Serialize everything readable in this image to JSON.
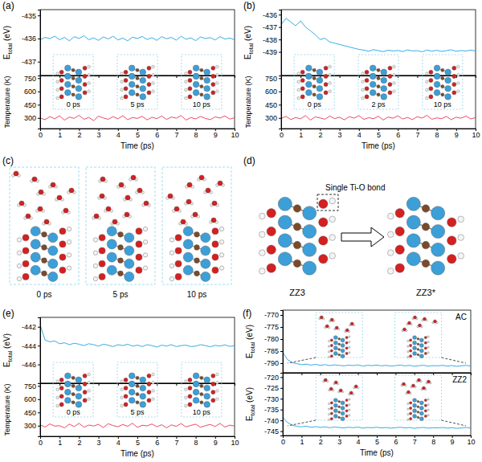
{
  "chart_data": [
    {
      "type": "line",
      "title": "(a)",
      "ylabel": "Etotal (eV)",
      "x": [
        0,
        0.25,
        0.5,
        0.75,
        1,
        1.25,
        1.5,
        1.75,
        2,
        2.25,
        2.5,
        2.75,
        3,
        3.25,
        3.5,
        3.75,
        4,
        4.25,
        4.5,
        4.75,
        5,
        5.25,
        5.5,
        5.75,
        6,
        6.25,
        6.5,
        6.75,
        7,
        7.25,
        7.5,
        7.75,
        8,
        8.25,
        8.5,
        8.75,
        9,
        9.25,
        9.5,
        9.75,
        10
      ],
      "values": [
        -436.05,
        -435.95,
        -436.0,
        -435.9,
        -436.05,
        -435.95,
        -436.1,
        -435.92,
        -436.0,
        -435.88,
        -436.05,
        -435.97,
        -436.08,
        -435.93,
        -436.02,
        -435.9,
        -436.06,
        -435.98,
        -436.1,
        -435.94,
        -436.0,
        -435.91,
        -436.04,
        -435.96,
        -436.08,
        -435.92,
        -436.01,
        -435.95,
        -436.07,
        -435.9,
        -436.03,
        -435.97,
        -436.09,
        -435.93,
        -436.0,
        -435.96,
        -436.06,
        -435.92,
        -436.02,
        -435.98,
        -436.05
      ],
      "color": "#1fa3e0",
      "xlim": [
        0,
        10
      ],
      "xticks": [
        0,
        1,
        2,
        3,
        4,
        5,
        6,
        7,
        8,
        9,
        10
      ],
      "ylim": [
        -437.6,
        -434.75
      ],
      "yticks": [
        -437,
        -436,
        -435
      ],
      "tick_labels": "y",
      "annotations": [
        "0 ps",
        "5 ps",
        "10 ps"
      ]
    },
    {
      "type": "line",
      "xlabel": "Time (ps)",
      "ylabel": "Temperature (K)",
      "x": [
        0,
        0.25,
        0.5,
        0.75,
        1,
        1.25,
        1.5,
        1.75,
        2,
        2.25,
        2.5,
        2.75,
        3,
        3.25,
        3.5,
        3.75,
        4,
        4.25,
        4.5,
        4.75,
        5,
        5.25,
        5.5,
        5.75,
        6,
        6.25,
        6.5,
        6.75,
        7,
        7.25,
        7.5,
        7.75,
        8,
        8.25,
        8.5,
        8.75,
        9,
        9.25,
        9.5,
        9.75,
        10
      ],
      "values": [
        300,
        280,
        315,
        290,
        325,
        275,
        310,
        295,
        330,
        285,
        305,
        270,
        320,
        300,
        285,
        315,
        290,
        325,
        280,
        305,
        295,
        318,
        278,
        308,
        292,
        322,
        283,
        310,
        297,
        328,
        276,
        304,
        289,
        317,
        295,
        281,
        312,
        299,
        323,
        287,
        302
      ],
      "color": "#e8374f",
      "xlim": [
        0,
        10
      ],
      "xticks": [
        0,
        1,
        2,
        3,
        4,
        5,
        6,
        7,
        8,
        9,
        10
      ],
      "ylim": [
        180,
        780
      ],
      "yticks": [
        300,
        450,
        600,
        750
      ]
    },
    {
      "type": "line",
      "title": "(b)",
      "ylabel": "Etotal (eV)",
      "x": [
        0,
        0.25,
        0.5,
        0.75,
        1,
        1.25,
        1.5,
        1.75,
        2,
        2.25,
        2.5,
        2.75,
        3,
        3.25,
        3.5,
        3.75,
        4,
        4.25,
        4.5,
        4.75,
        5,
        5.25,
        5.5,
        5.75,
        6,
        6.25,
        6.5,
        6.75,
        7,
        7.25,
        7.5,
        7.75,
        8,
        8.25,
        8.5,
        8.75,
        9,
        9.25,
        9.5,
        9.75,
        10
      ],
      "values": [
        -436.8,
        -436.3,
        -436.6,
        -436.9,
        -436.5,
        -437.0,
        -437.3,
        -437.6,
        -438.0,
        -437.9,
        -438.2,
        -438.3,
        -438.4,
        -438.5,
        -438.6,
        -438.7,
        -438.8,
        -438.85,
        -438.95,
        -438.82,
        -438.9,
        -438.98,
        -438.86,
        -438.93,
        -438.88,
        -438.97,
        -438.84,
        -438.92,
        -438.9,
        -438.99,
        -438.85,
        -438.94,
        -438.87,
        -438.96,
        -438.9,
        -438.83,
        -438.95,
        -438.89,
        -438.93,
        -438.86,
        -438.92
      ],
      "color": "#1fa3e0",
      "xlim": [
        0,
        10
      ],
      "xticks": [
        0,
        1,
        2,
        3,
        4,
        5,
        6,
        7,
        8,
        9,
        10
      ],
      "ylim": [
        -440.9,
        -435.6
      ],
      "yticks": [
        -439,
        -438,
        -437,
        -436
      ],
      "tick_labels": "y",
      "annotations": [
        "0 ps",
        "2 ps",
        "10 ps"
      ]
    },
    {
      "type": "line",
      "xlabel": "Time (ps)",
      "ylabel": "Temperature (K)",
      "x": [
        0,
        0.25,
        0.5,
        0.75,
        1,
        1.25,
        1.5,
        1.75,
        2,
        2.25,
        2.5,
        2.75,
        3,
        3.25,
        3.5,
        3.75,
        4,
        4.25,
        4.5,
        4.75,
        5,
        5.25,
        5.5,
        5.75,
        6,
        6.25,
        6.5,
        6.75,
        7,
        7.25,
        7.5,
        7.75,
        8,
        8.25,
        8.5,
        8.75,
        9,
        9.25,
        9.5,
        9.75,
        10
      ],
      "values": [
        295,
        318,
        282,
        305,
        290,
        327,
        276,
        312,
        300,
        286,
        321,
        293,
        308,
        279,
        315,
        298,
        326,
        284,
        303,
        291,
        319,
        277,
        311,
        296,
        324,
        288,
        306,
        281,
        314,
        299,
        329,
        285,
        301,
        292,
        317,
        280,
        309,
        297,
        322,
        289,
        304
      ],
      "color": "#e8374f",
      "xlim": [
        0,
        10
      ],
      "xticks": [
        0,
        1,
        2,
        3,
        4,
        5,
        6,
        7,
        8,
        9,
        10
      ],
      "ylim": [
        180,
        780
      ],
      "yticks": [
        300,
        450,
        600,
        750
      ]
    },
    {
      "type": "line",
      "title": "(e)",
      "ylabel": "Etotal (eV)",
      "x": [
        0,
        0.25,
        0.5,
        0.75,
        1,
        1.25,
        1.5,
        1.75,
        2,
        2.25,
        2.5,
        2.75,
        3,
        3.25,
        3.5,
        3.75,
        4,
        4.25,
        4.5,
        4.75,
        5,
        5.25,
        5.5,
        5.75,
        6,
        6.25,
        6.5,
        6.75,
        7,
        7.25,
        7.5,
        7.75,
        8,
        8.25,
        8.5,
        8.75,
        9,
        9.25,
        9.5,
        9.75,
        10
      ],
      "values": [
        -441.8,
        -443.4,
        -443.6,
        -443.5,
        -443.8,
        -443.7,
        -443.9,
        -443.75,
        -443.85,
        -444.0,
        -443.8,
        -443.9,
        -444.05,
        -443.85,
        -443.95,
        -444.1,
        -443.9,
        -444.0,
        -443.85,
        -444.05,
        -443.95,
        -444.1,
        -443.9,
        -444.0,
        -444.15,
        -443.95,
        -444.05,
        -443.9,
        -444.1,
        -444.0,
        -443.95,
        -444.1,
        -444.05,
        -443.9,
        -444.0,
        -444.12,
        -443.97,
        -444.05,
        -443.92,
        -444.08,
        -444.0
      ],
      "color": "#1fa3e0",
      "xlim": [
        0,
        10
      ],
      "xticks": [
        0,
        1,
        2,
        3,
        4,
        5,
        6,
        7,
        8,
        9,
        10
      ],
      "ylim": [
        -448,
        -441
      ],
      "yticks": [
        -446,
        -444,
        -442
      ],
      "tick_labels": "y",
      "annotations": [
        "0 ps",
        "5 ps",
        "10 ps"
      ]
    },
    {
      "type": "line",
      "xlabel": "Time (ps)",
      "ylabel": "Temperature (K)",
      "x": [
        0,
        0.25,
        0.5,
        0.75,
        1,
        1.25,
        1.5,
        1.75,
        2,
        2.25,
        2.5,
        2.75,
        3,
        3.25,
        3.5,
        3.75,
        4,
        4.25,
        4.5,
        4.75,
        5,
        5.25,
        5.5,
        5.75,
        6,
        6.25,
        6.5,
        6.75,
        7,
        7.25,
        7.5,
        7.75,
        8,
        8.25,
        8.5,
        8.75,
        9,
        9.25,
        9.5,
        9.75,
        10
      ],
      "values": [
        310,
        285,
        320,
        295,
        300,
        275,
        318,
        290,
        326,
        283,
        307,
        296,
        315,
        279,
        322,
        301,
        288,
        313,
        294,
        327,
        281,
        305,
        298,
        319,
        287,
        311,
        276,
        309,
        293,
        324,
        286,
        303,
        317,
        282,
        300,
        314,
        291,
        325,
        284,
        306,
        297
      ],
      "color": "#e8374f",
      "xlim": [
        0,
        10
      ],
      "xticks": [
        0,
        1,
        2,
        3,
        4,
        5,
        6,
        7,
        8,
        9,
        10
      ],
      "ylim": [
        180,
        780
      ],
      "yticks": [
        300,
        450,
        600,
        750
      ]
    },
    {
      "type": "line",
      "title": "(f)",
      "ylabel": "Etotal (eV)",
      "x": [
        0,
        0.25,
        0.5,
        0.75,
        1,
        1.25,
        1.5,
        1.75,
        2,
        2.25,
        2.5,
        2.75,
        3,
        3.25,
        3.5,
        3.75,
        4,
        4.25,
        4.5,
        4.75,
        5,
        5.25,
        5.5,
        5.75,
        6,
        6.25,
        6.5,
        6.75,
        7,
        7.25,
        7.5,
        7.75,
        8,
        8.25,
        8.5,
        8.75,
        9,
        9.25,
        9.5,
        9.75,
        10
      ],
      "values": [
        -785.5,
        -788.5,
        -789.8,
        -790.2,
        -790.6,
        -790.4,
        -790.8,
        -790.5,
        -790.9,
        -790.6,
        -791.0,
        -790.7,
        -790.9,
        -791.1,
        -790.8,
        -791.0,
        -790.7,
        -791.2,
        -790.9,
        -791.0,
        -790.8,
        -791.1,
        -790.9,
        -791.2,
        -791.0,
        -790.8,
        -791.1,
        -790.9,
        -791.3,
        -791.0,
        -790.9,
        -791.2,
        -791.0,
        -791.1,
        -790.9,
        -791.2,
        -791.0,
        -791.3,
        -791.1,
        -790.9,
        -791.2
      ],
      "color": "#1fa3e0",
      "xlim": [
        0,
        10
      ],
      "xticks": [
        0,
        1,
        2,
        3,
        4,
        5,
        6,
        7,
        8,
        9,
        10
      ],
      "ylim": [
        -794,
        -768
      ],
      "yticks": [
        -790,
        -785,
        -780,
        -775,
        -770
      ],
      "tick_labels": "y",
      "annotations": [
        "AC"
      ]
    },
    {
      "type": "line",
      "xlabel": "Time (ps)",
      "ylabel": "Etotal (eV)",
      "x": [
        0,
        0.25,
        0.5,
        0.75,
        1,
        1.25,
        1.5,
        1.75,
        2,
        2.25,
        2.5,
        2.75,
        3,
        3.25,
        3.5,
        3.75,
        4,
        4.25,
        4.5,
        4.75,
        5,
        5.25,
        5.5,
        5.75,
        6,
        6.25,
        6.5,
        6.75,
        7,
        7.25,
        7.5,
        7.75,
        8,
        8.25,
        8.5,
        8.75,
        9,
        9.25,
        9.5,
        9.75,
        10
      ],
      "values": [
        -738.5,
        -741.0,
        -742.2,
        -742.8,
        -743.0,
        -742.7,
        -743.2,
        -742.9,
        -743.3,
        -743.0,
        -743.4,
        -743.1,
        -743.3,
        -743.5,
        -743.2,
        -743.4,
        -743.1,
        -743.6,
        -743.3,
        -743.4,
        -743.2,
        -743.5,
        -743.3,
        -743.6,
        -743.4,
        -743.2,
        -743.5,
        -743.3,
        -743.7,
        -743.4,
        -743.3,
        -743.6,
        -743.4,
        -743.5,
        -743.3,
        -743.6,
        -743.4,
        -743.7,
        -743.5,
        -743.3,
        -743.6
      ],
      "color": "#1fa3e0",
      "xlim": [
        0,
        10
      ],
      "xticks": [
        0,
        1,
        2,
        3,
        4,
        5,
        6,
        7,
        8,
        9,
        10
      ],
      "ylim": [
        -747,
        -718
      ],
      "yticks": [
        -745,
        -740,
        -735,
        -730,
        -725,
        -720
      ],
      "annotations": [
        "ZZ2"
      ]
    }
  ],
  "diagrams": {
    "c": {
      "title": "(c)",
      "snapshots": [
        "0 ps",
        "5 ps",
        "10 ps"
      ]
    },
    "d": {
      "title": "(d)",
      "callout": "Single Ti-O bond",
      "from": "ZZ3",
      "to": "ZZ3*"
    }
  }
}
